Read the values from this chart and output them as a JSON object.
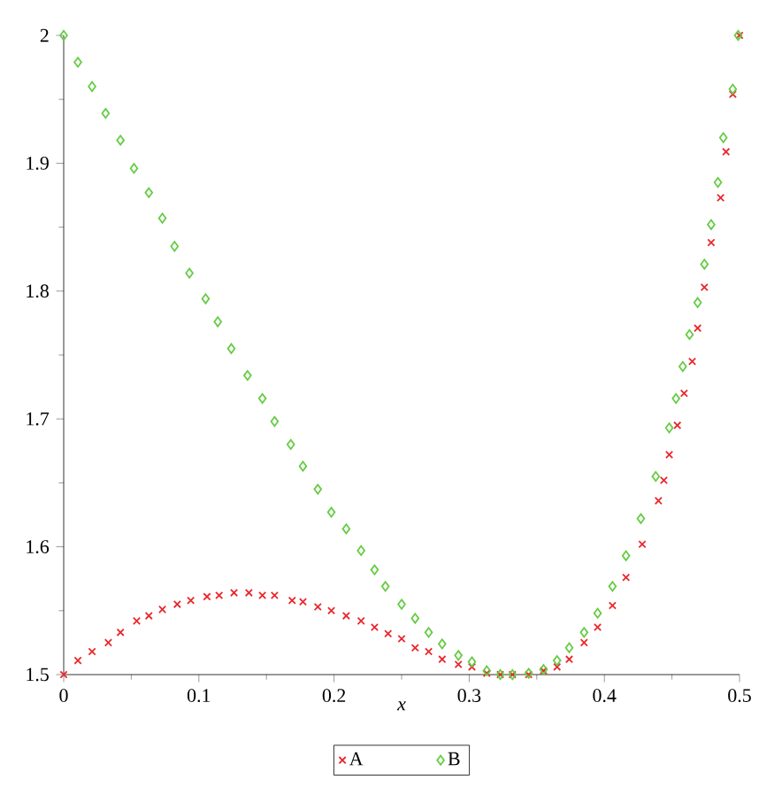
{
  "chart_data": {
    "type": "scatter",
    "xlabel": "x",
    "xlim": [
      0,
      0.5
    ],
    "ylim": [
      1.5,
      2
    ],
    "xticks": [
      0,
      0.1,
      0.2,
      0.3,
      0.4,
      0.5
    ],
    "yticks": [
      1.5,
      1.6,
      1.7,
      1.8,
      1.9,
      2
    ],
    "grid": false,
    "legend": "bottom",
    "series": [
      {
        "name": "A",
        "color": "#e8282d",
        "marker": "cross",
        "x": [
          0,
          0.0105,
          0.021,
          0.033,
          0.042,
          0.054,
          0.063,
          0.073,
          0.084,
          0.094,
          0.106,
          0.115,
          0.126,
          0.137,
          0.147,
          0.156,
          0.169,
          0.177,
          0.188,
          0.198,
          0.209,
          0.22,
          0.23,
          0.24,
          0.25,
          0.26,
          0.27,
          0.28,
          0.292,
          0.302,
          0.313,
          0.323,
          0.332,
          0.344,
          0.355,
          0.365,
          0.374,
          0.385,
          0.395,
          0.406,
          0.416,
          0.428,
          0.44,
          0.444,
          0.448,
          0.454,
          0.459,
          0.465,
          0.469,
          0.474,
          0.479,
          0.486,
          0.49,
          0.495,
          0.5
        ],
        "values": [
          1.5,
          1.511,
          1.518,
          1.525,
          1.533,
          1.542,
          1.546,
          1.551,
          1.555,
          1.558,
          1.561,
          1.562,
          1.564,
          1.564,
          1.562,
          1.562,
          1.558,
          1.557,
          1.553,
          1.55,
          1.546,
          1.542,
          1.537,
          1.532,
          1.528,
          1.521,
          1.518,
          1.512,
          1.508,
          1.506,
          1.501,
          1.5,
          1.5,
          1.5,
          1.503,
          1.506,
          1.512,
          1.525,
          1.537,
          1.554,
          1.576,
          1.602,
          1.636,
          1.652,
          1.672,
          1.695,
          1.72,
          1.745,
          1.771,
          1.803,
          1.838,
          1.873,
          1.909,
          1.954,
          2.0
        ]
      },
      {
        "name": "B",
        "color": "#66cc44",
        "marker": "diamond",
        "x": [
          0,
          0.0105,
          0.021,
          0.031,
          0.042,
          0.052,
          0.063,
          0.073,
          0.082,
          0.093,
          0.105,
          0.114,
          0.124,
          0.136,
          0.147,
          0.156,
          0.168,
          0.177,
          0.188,
          0.198,
          0.209,
          0.22,
          0.23,
          0.238,
          0.25,
          0.26,
          0.27,
          0.28,
          0.292,
          0.302,
          0.313,
          0.323,
          0.332,
          0.344,
          0.355,
          0.365,
          0.374,
          0.385,
          0.395,
          0.406,
          0.416,
          0.427,
          0.438,
          0.448,
          0.453,
          0.458,
          0.463,
          0.469,
          0.474,
          0.479,
          0.484,
          0.488,
          0.495,
          0.499
        ],
        "values": [
          2.0,
          1.979,
          1.96,
          1.939,
          1.918,
          1.896,
          1.877,
          1.857,
          1.835,
          1.814,
          1.794,
          1.776,
          1.755,
          1.734,
          1.716,
          1.698,
          1.68,
          1.663,
          1.645,
          1.627,
          1.614,
          1.597,
          1.582,
          1.569,
          1.555,
          1.544,
          1.533,
          1.524,
          1.515,
          1.51,
          1.503,
          1.5,
          1.5,
          1.501,
          1.504,
          1.511,
          1.521,
          1.533,
          1.548,
          1.569,
          1.593,
          1.622,
          1.655,
          1.693,
          1.716,
          1.741,
          1.766,
          1.791,
          1.821,
          1.852,
          1.885,
          1.92,
          1.958,
          2.0
        ]
      }
    ]
  }
}
